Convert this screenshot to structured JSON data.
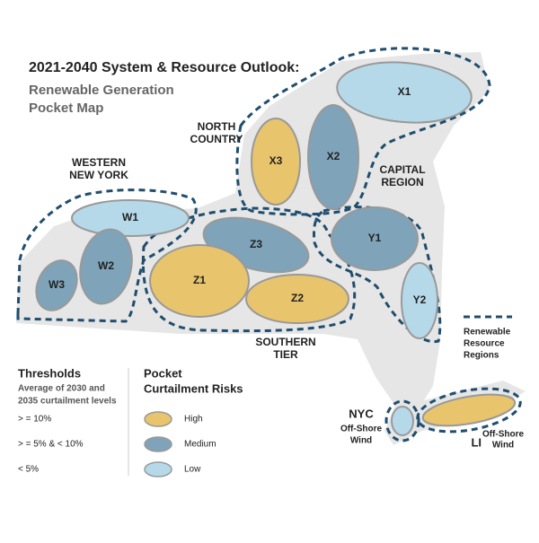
{
  "title": "2021-2040 System & Resource Outlook:",
  "subtitle_lines": [
    "Renewable Generation",
    "Pocket Map"
  ],
  "regions": [
    {
      "lines": [
        "NORTH",
        "COUNTRY"
      ]
    },
    {
      "lines": [
        "WESTERN",
        "NEW YORK"
      ]
    },
    {
      "lines": [
        "CAPITAL",
        "REGION"
      ]
    },
    {
      "lines": [
        "SOUTHERN",
        "TIER"
      ]
    }
  ],
  "pockets": [
    {
      "label": "X1",
      "color": "#b6d9e9"
    },
    {
      "label": "X2",
      "color": "#7fa3b9"
    },
    {
      "label": "X3",
      "color": "#e8c46c"
    },
    {
      "label": "W1",
      "color": "#b6d9e9"
    },
    {
      "label": "W2",
      "color": "#7fa3b9"
    },
    {
      "label": "W3",
      "color": "#7fa3b9"
    },
    {
      "label": "Z3",
      "color": "#7fa3b9"
    },
    {
      "label": "Z1",
      "color": "#e8c46c"
    },
    {
      "label": "Z2",
      "color": "#e8c46c"
    },
    {
      "label": "Y1",
      "color": "#7fa3b9"
    },
    {
      "label": "Y2",
      "color": "#b6d9e9"
    }
  ],
  "offshore": [
    {
      "name": "NYC",
      "lines": [
        "Off-Shore",
        "Wind"
      ],
      "color": "#b6d9e9"
    },
    {
      "name": "LI",
      "lines": [
        "Off-Shore",
        "Wind"
      ],
      "color": "#e8c46c"
    }
  ],
  "region_legend_lines": [
    "Renewable",
    "Resource",
    "Regions"
  ],
  "thresholds": {
    "title": "Thresholds",
    "note_lines": [
      "Average of 2030 and",
      "2035 curtailment levels"
    ],
    "levels": [
      "> = 10%",
      "> = 5% & < 10%",
      "< 5%"
    ]
  },
  "risk_legend": {
    "title_lines": [
      "Pocket",
      "Curtailment Risks"
    ],
    "items": [
      {
        "label": "High",
        "color": "#e8c46c"
      },
      {
        "label": "Medium",
        "color": "#7fa3b9"
      },
      {
        "label": "Low",
        "color": "#b6d9e9"
      }
    ]
  }
}
